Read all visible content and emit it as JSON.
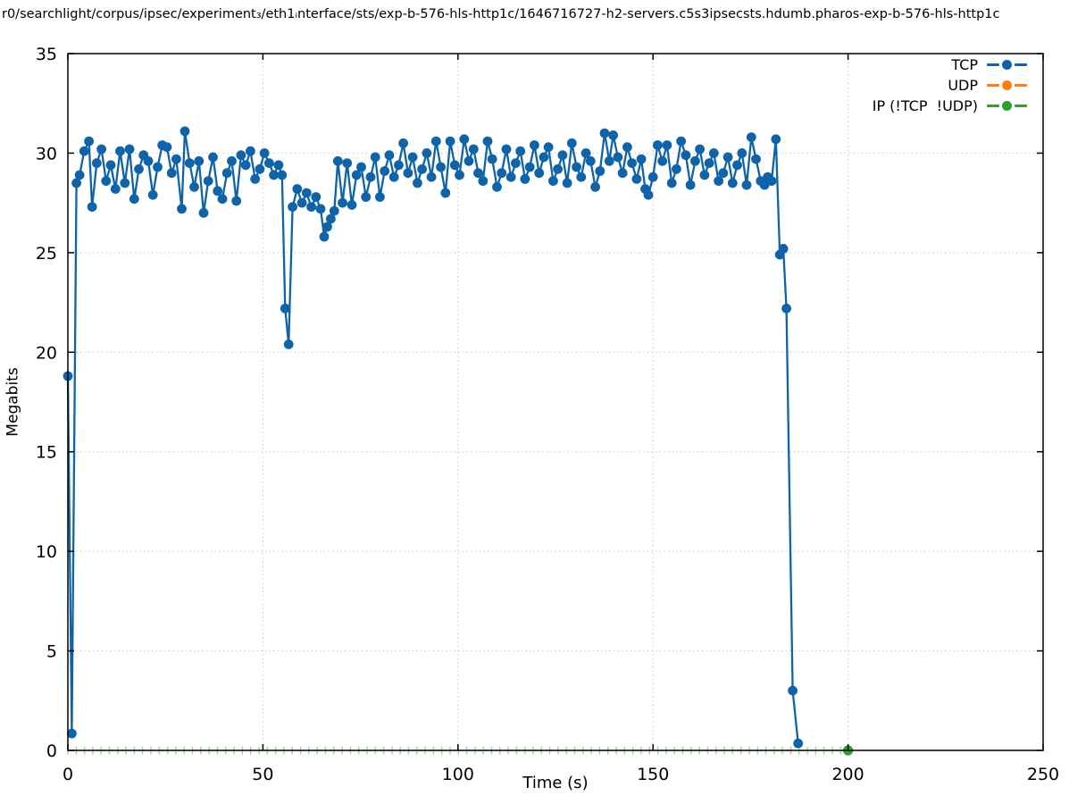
{
  "title": "r0/searchlight/corpus/ipsec/experiment₃/eth1ᵢnterface/sts/exp-b-576-hls-http1c/1646716727-h2-servers.c5s3ipsecsts.hdumb.pharos-exp-b-576-hls-http1c",
  "legend": [
    {
      "label": "TCP",
      "color": "#0f63a8"
    },
    {
      "label": "UDP",
      "color": "#ff7f0e"
    },
    {
      "label": "IP (!TCP  !UDP)",
      "color": "#2ca02c"
    }
  ],
  "colors": {
    "tcp": "#0f63a8",
    "udp": "#ff7f0e",
    "ip": "#2ca02c",
    "grid": "#c8c8c8",
    "axis": "#000000"
  },
  "chart_data": {
    "type": "line",
    "title": "r0/searchlight/corpus/ipsec/experiment₃/eth1ᵢnterface/sts/exp-b-576-hls-http1c/1646716727-h2-servers.c5s3ipsecsts.hdumb.pharos-exp-b-576-hls-http1c",
    "xlabel": "Time (s)",
    "ylabel": "Megabits",
    "xlim": [
      0,
      250
    ],
    "ylim": [
      0,
      35
    ],
    "x_ticks": [
      0,
      50,
      100,
      150,
      200,
      250
    ],
    "y_ticks": [
      0,
      5,
      10,
      15,
      20,
      25,
      30,
      35
    ],
    "grid": "dotted at every major tick, both axes",
    "legend_position": "top-right inside plot",
    "series": [
      {
        "name": "TCP",
        "color": "#0f63a8",
        "marker": "filled-circle",
        "style": "linespoints",
        "points": [
          [
            0,
            18.8
          ],
          [
            1,
            0.85
          ],
          [
            2.2,
            28.5
          ],
          [
            3,
            28.9
          ],
          [
            4.2,
            30.1
          ],
          [
            5.4,
            30.6
          ],
          [
            6.2,
            27.3
          ],
          [
            7.4,
            29.5
          ],
          [
            8.6,
            30.2
          ],
          [
            9.8,
            28.6
          ],
          [
            11,
            29.4
          ],
          [
            12.2,
            28.2
          ],
          [
            13.4,
            30.1
          ],
          [
            14.6,
            28.5
          ],
          [
            15.8,
            30.2
          ],
          [
            17,
            27.7
          ],
          [
            18.2,
            29.2
          ],
          [
            19.4,
            29.9
          ],
          [
            20.6,
            29.6
          ],
          [
            21.8,
            27.9
          ],
          [
            23,
            29.3
          ],
          [
            24.2,
            30.4
          ],
          [
            25.4,
            30.3
          ],
          [
            26.6,
            29
          ],
          [
            27.8,
            29.7
          ],
          [
            29.2,
            27.2
          ],
          [
            30,
            31.1
          ],
          [
            31.2,
            29.5
          ],
          [
            32.4,
            28.3
          ],
          [
            33.6,
            29.6
          ],
          [
            34.8,
            27
          ],
          [
            36,
            28.6
          ],
          [
            37.2,
            29.8
          ],
          [
            38.4,
            28.1
          ],
          [
            39.6,
            27.7
          ],
          [
            40.8,
            29
          ],
          [
            42,
            29.6
          ],
          [
            43.2,
            27.6
          ],
          [
            44.4,
            29.9
          ],
          [
            45.6,
            29.4
          ],
          [
            46.8,
            30.1
          ],
          [
            48,
            28.7
          ],
          [
            49.2,
            29.2
          ],
          [
            50.4,
            30
          ],
          [
            51.6,
            29.5
          ],
          [
            52.8,
            28.9
          ],
          [
            54,
            29.4
          ],
          [
            54.9,
            28.9
          ],
          [
            55.7,
            22.2
          ],
          [
            56.6,
            20.4
          ],
          [
            57.6,
            27.3
          ],
          [
            58.8,
            28.2
          ],
          [
            60,
            27.5
          ],
          [
            61.2,
            28
          ],
          [
            62.4,
            27.3
          ],
          [
            63.6,
            27.8
          ],
          [
            64.8,
            27.2
          ],
          [
            65.7,
            25.8
          ],
          [
            66.5,
            26.3
          ],
          [
            67.4,
            26.7
          ],
          [
            68.3,
            27.1
          ],
          [
            69.2,
            29.6
          ],
          [
            70.4,
            27.5
          ],
          [
            71.6,
            29.5
          ],
          [
            72.8,
            27.4
          ],
          [
            74,
            28.9
          ],
          [
            75.2,
            29.3
          ],
          [
            76.4,
            27.8
          ],
          [
            77.6,
            28.8
          ],
          [
            78.8,
            29.8
          ],
          [
            80,
            27.8
          ],
          [
            81.2,
            29.1
          ],
          [
            82.4,
            29.9
          ],
          [
            83.6,
            28.8
          ],
          [
            84.8,
            29.4
          ],
          [
            86,
            30.5
          ],
          [
            87.2,
            29
          ],
          [
            88.4,
            29.8
          ],
          [
            89.6,
            28.5
          ],
          [
            90.8,
            29.2
          ],
          [
            92,
            30
          ],
          [
            93.2,
            28.8
          ],
          [
            94.4,
            30.6
          ],
          [
            95.6,
            29.3
          ],
          [
            96.8,
            28
          ],
          [
            98,
            30.6
          ],
          [
            99.2,
            29.4
          ],
          [
            100.4,
            28.9
          ],
          [
            101.6,
            30.7
          ],
          [
            102.8,
            29.6
          ],
          [
            104,
            30.2
          ],
          [
            105.2,
            29
          ],
          [
            106.4,
            28.6
          ],
          [
            107.6,
            30.6
          ],
          [
            108.8,
            29.7
          ],
          [
            110,
            28.3
          ],
          [
            111.2,
            29
          ],
          [
            112.4,
            30.2
          ],
          [
            113.6,
            28.8
          ],
          [
            114.8,
            29.5
          ],
          [
            116,
            30.1
          ],
          [
            117.2,
            28.7
          ],
          [
            118.4,
            29.3
          ],
          [
            119.6,
            30.4
          ],
          [
            120.8,
            29
          ],
          [
            122,
            29.8
          ],
          [
            123.2,
            30.3
          ],
          [
            124.4,
            28.6
          ],
          [
            125.6,
            29.2
          ],
          [
            126.8,
            29.9
          ],
          [
            128,
            28.5
          ],
          [
            129.2,
            30.5
          ],
          [
            130.4,
            29.3
          ],
          [
            131.6,
            28.8
          ],
          [
            132.8,
            30
          ],
          [
            134,
            29.6
          ],
          [
            135.2,
            28.3
          ],
          [
            136.4,
            29.1
          ],
          [
            137.6,
            31
          ],
          [
            138.8,
            29.6
          ],
          [
            139.8,
            30.9
          ],
          [
            141,
            29.8
          ],
          [
            142.2,
            29
          ],
          [
            143.4,
            30.3
          ],
          [
            144.6,
            29.5
          ],
          [
            145.8,
            28.7
          ],
          [
            147,
            29.7
          ],
          [
            148,
            28.2
          ],
          [
            148.8,
            27.9
          ],
          [
            150,
            28.8
          ],
          [
            151.2,
            30.4
          ],
          [
            152.4,
            29.6
          ],
          [
            153.6,
            30.4
          ],
          [
            154.8,
            28.5
          ],
          [
            156,
            29.2
          ],
          [
            157.2,
            30.6
          ],
          [
            158.4,
            29.9
          ],
          [
            159.6,
            28.4
          ],
          [
            160.8,
            29.6
          ],
          [
            162,
            30.2
          ],
          [
            163.2,
            28.9
          ],
          [
            164.4,
            29.5
          ],
          [
            165.6,
            30
          ],
          [
            166.8,
            28.6
          ],
          [
            168,
            29
          ],
          [
            169.2,
            29.8
          ],
          [
            170.4,
            28.5
          ],
          [
            171.6,
            29.4
          ],
          [
            172.8,
            30
          ],
          [
            174,
            28.4
          ],
          [
            175.2,
            30.8
          ],
          [
            176.4,
            29.7
          ],
          [
            177.6,
            28.6
          ],
          [
            178.6,
            28.4
          ],
          [
            179.4,
            28.8
          ],
          [
            180.4,
            28.6
          ],
          [
            181.5,
            30.7
          ],
          [
            182.5,
            24.9
          ],
          [
            183.4,
            25.2
          ],
          [
            184.2,
            22.2
          ],
          [
            185.8,
            3
          ],
          [
            187.2,
            0.35
          ]
        ]
      },
      {
        "name": "UDP",
        "color": "#ff7f0e",
        "marker": "filled-circle",
        "style": "linespoints",
        "points": [],
        "note": "no visible data points on plot (legend entry only)"
      },
      {
        "name": "IP (!TCP  !UDP)",
        "color": "#2ca02c",
        "marker": "filled-circle",
        "style": "linespoints",
        "constant_y": 0,
        "x_start": 0,
        "x_end": 200,
        "tick_interval": 2.13,
        "points": [
          [
            200,
            0
          ]
        ],
        "note": "zero throughout 0–200 s; tiny clipped markers along x-axis, full dot at 200 s"
      }
    ]
  }
}
